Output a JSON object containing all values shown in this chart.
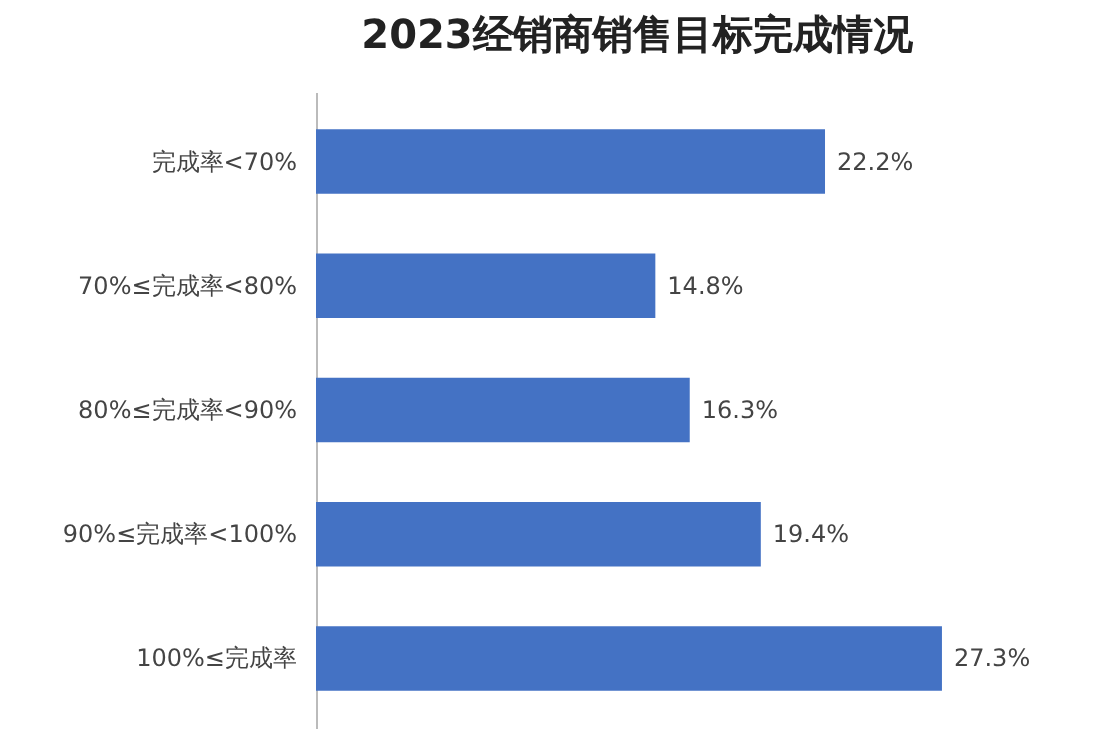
{
  "chart_data": {
    "type": "bar",
    "orientation": "horizontal",
    "title": "2023经销商销售目标完成情况",
    "categories": [
      "完成率<70%",
      "70%≤完成率<80%",
      "80%≤完成率<90%",
      "90%≤完成率<100%",
      "100%≤完成率"
    ],
    "values": [
      22.2,
      14.8,
      16.3,
      19.4,
      27.3
    ],
    "value_labels": [
      "22.2%",
      "14.8%",
      "16.3%",
      "19.4%",
      "27.3%"
    ],
    "color": "#4472c4"
  }
}
